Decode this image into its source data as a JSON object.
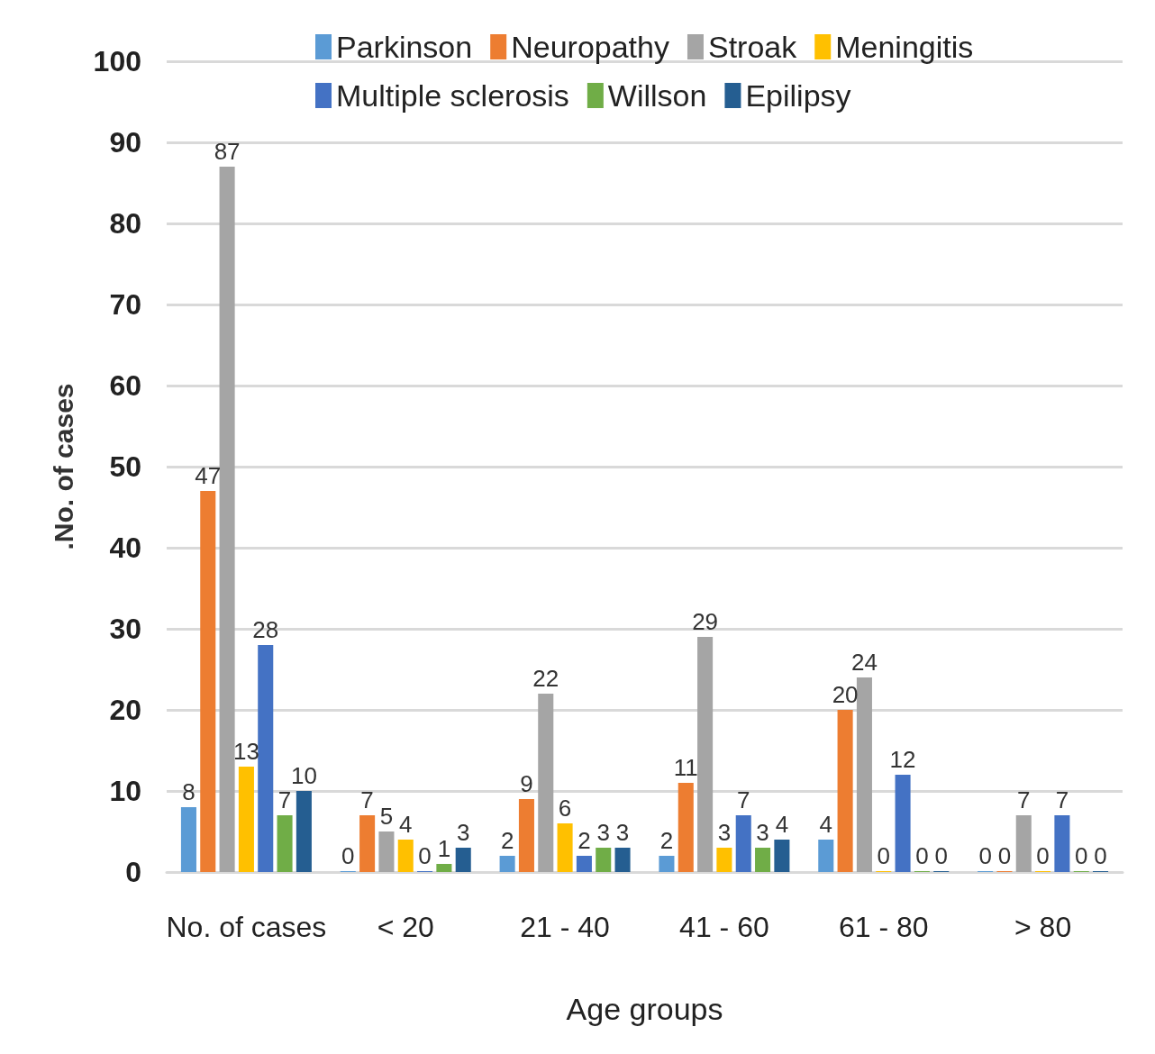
{
  "chart_data": {
    "type": "bar",
    "xlabel": "Age groups",
    "ylabel": ".No. of cases",
    "categories": [
      "No. of cases",
      "< 20",
      "21 - 40",
      "41 - 60",
      "61 - 80",
      "> 80"
    ],
    "series": [
      {
        "name": "Parkinson",
        "color": "#5b9bd5",
        "values": [
          8,
          0,
          2,
          2,
          4,
          0
        ]
      },
      {
        "name": "Neuropathy",
        "color": "#ed7d31",
        "values": [
          47,
          7,
          9,
          11,
          20,
          0
        ]
      },
      {
        "name": "Stroak",
        "color": "#a5a5a5",
        "values": [
          87,
          5,
          22,
          29,
          24,
          7
        ]
      },
      {
        "name": "Meningitis",
        "color": "#ffc000",
        "values": [
          13,
          4,
          6,
          3,
          0,
          0
        ]
      },
      {
        "name": "Multiple sclerosis",
        "color": "#4472c4",
        "values": [
          28,
          0,
          2,
          7,
          12,
          7
        ]
      },
      {
        "name": "Willson",
        "color": "#70ad47",
        "values": [
          7,
          1,
          3,
          3,
          0,
          0
        ]
      },
      {
        "name": "Epilipsy",
        "color": "#255e91",
        "values": [
          10,
          3,
          3,
          4,
          0,
          0
        ]
      }
    ],
    "ylim": [
      0,
      100
    ],
    "yticks": [
      0,
      10,
      20,
      30,
      40,
      50,
      60,
      70,
      80,
      90,
      100
    ],
    "grid": "y",
    "legend": "top",
    "data_labels": true
  }
}
